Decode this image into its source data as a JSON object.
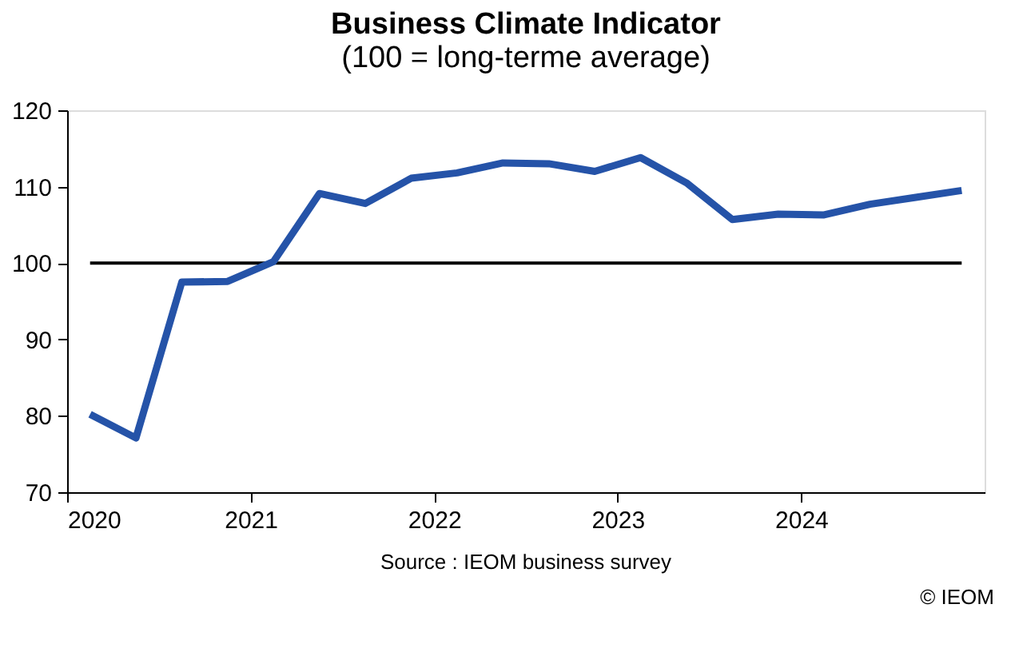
{
  "chart_data": {
    "type": "line",
    "title": "Business Climate Indicator",
    "subtitle": "(100 = long-terme average)",
    "x": [
      2020.125,
      2020.375,
      2020.625,
      2020.875,
      2021.125,
      2021.375,
      2021.625,
      2021.875,
      2022.125,
      2022.375,
      2022.625,
      2022.875,
      2023.125,
      2023.375,
      2023.625,
      2023.875,
      2024.125,
      2024.375,
      2024.625,
      2024.875
    ],
    "series": [
      {
        "color": "#2553a8",
        "values": [
          80.2,
          77.1,
          97.5,
          97.6,
          100.2,
          109.1,
          107.8,
          111.1,
          111.8,
          113.1,
          113.0,
          112.0,
          113.8,
          110.5,
          105.7,
          106.4,
          106.3,
          107.7,
          108.6,
          109.5
        ]
      }
    ],
    "xlim": [
      2020,
      2025
    ],
    "xticks": [
      2020,
      2021,
      2022,
      2023,
      2024
    ],
    "ylim": [
      70,
      120
    ],
    "yticks": [
      70,
      80,
      90,
      100,
      110,
      120
    ],
    "ref_lines": [
      {
        "axis": "y",
        "value": 100,
        "color": "#000000"
      }
    ],
    "annotations": [
      "Source : IEOM business survey",
      "© IEOM"
    ],
    "grid": false,
    "marker": "none",
    "line_style": "solid"
  }
}
